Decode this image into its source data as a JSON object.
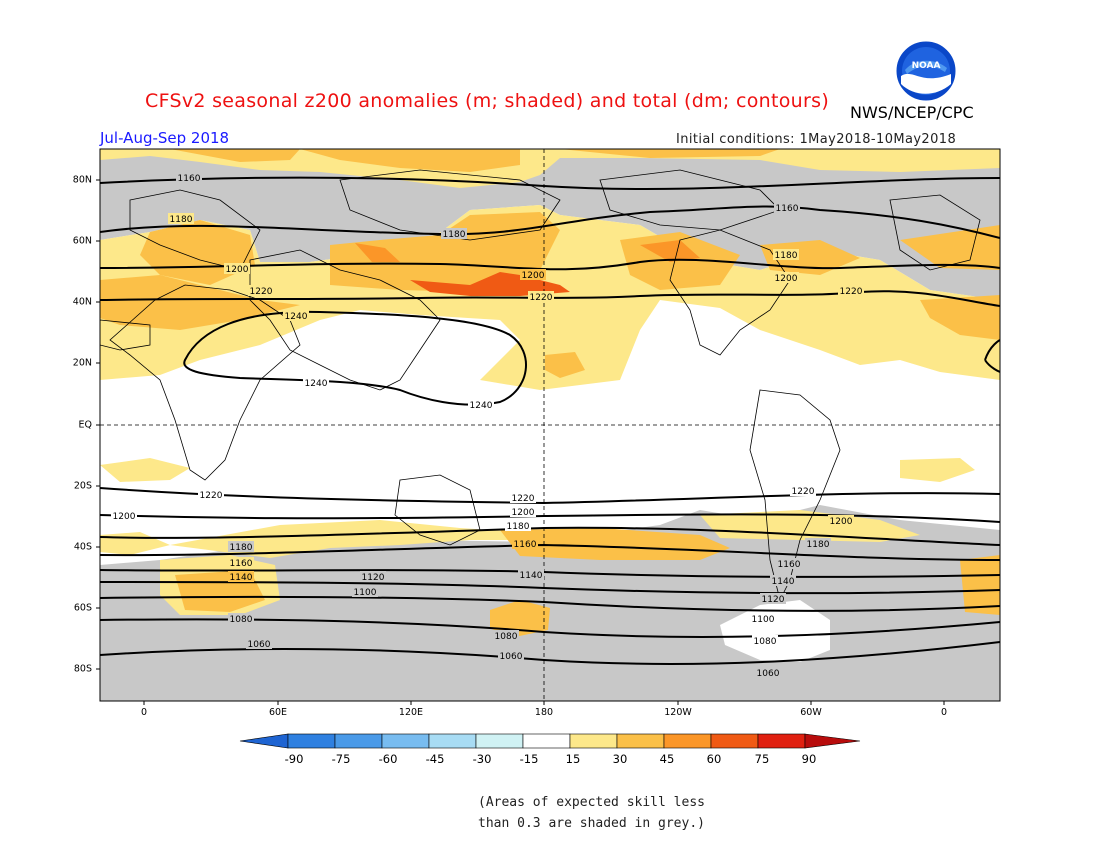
{
  "header": {
    "title": "CFSv2 seasonal z200 anomalies (m; shaded) and total (dm; contours)",
    "agency": "NWS/NCEP/CPC",
    "period": "Jul-Aug-Sep 2018",
    "initial_conditions": "Initial conditions: 1May2018-10May2018",
    "logo_text": "NOAA"
  },
  "map": {
    "lat_labels": [
      "80N",
      "60N",
      "40N",
      "20N",
      "EQ",
      "20S",
      "40S",
      "60S",
      "80S"
    ],
    "lon_labels": [
      "0",
      "60E",
      "120E",
      "180",
      "120W",
      "60W",
      "0"
    ],
    "contour_labels": [
      "1160",
      "1160",
      "1180",
      "1180",
      "1180",
      "1200",
      "1200",
      "1200",
      "1220",
      "1220",
      "1220",
      "1240",
      "1240",
      "1240",
      "1220",
      "1220",
      "1220",
      "1200",
      "1200",
      "1200",
      "1180",
      "1180",
      "1180",
      "1160",
      "1160",
      "1160",
      "1140",
      "1140",
      "1140",
      "1120",
      "1120",
      "1100",
      "1100",
      "1080",
      "1080",
      "1080",
      "1060",
      "1060",
      "1060"
    ]
  },
  "colorbar": {
    "labels": [
      "-90",
      "-75",
      "-60",
      "-45",
      "-30",
      "-15",
      "15",
      "30",
      "45",
      "60",
      "75",
      "90"
    ],
    "colors": [
      "#1e64d2",
      "#2f80e0",
      "#4a9ae8",
      "#78bcf0",
      "#a8dcf4",
      "#d0f2f4",
      "#ffffff",
      "#fde88a",
      "#fbc048",
      "#fb9628",
      "#f05a14",
      "#e02010",
      "#b80c0c"
    ]
  },
  "palette": {
    "grey": "#c8c8c8",
    "pos15": "#fde88a",
    "pos30": "#fbc048",
    "pos45": "#fb9628",
    "pos60": "#f05a14"
  },
  "footnote": {
    "line1": "(Areas of expected skill less",
    "line2": "than 0.3 are shaded in grey.)"
  }
}
